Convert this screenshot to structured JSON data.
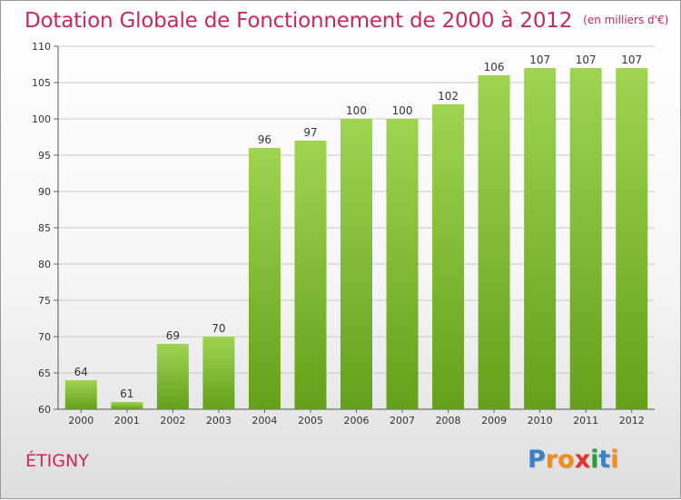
{
  "title": "Dotation Globale de Fonctionnement de 2000 à 2012",
  "unit_note": "(en milliers d'€)",
  "commune": "ÉTIGNY",
  "logo": {
    "letters": [
      "P",
      "r",
      "o",
      "x",
      "i",
      "t",
      "i"
    ],
    "colors": [
      "#3d7fc4",
      "#f28c1e",
      "#f28c1e",
      "#e8302c",
      "#2f9a3a",
      "#3d7fc4",
      "#f28c1e"
    ]
  },
  "colors": {
    "bar_light": "#9fd451",
    "bar_dark": "#64a019",
    "accent": "#c8285a",
    "grid": "#c8c8c8"
  },
  "chart_data": {
    "type": "bar",
    "categories": [
      "2000",
      "2001",
      "2002",
      "2003",
      "2004",
      "2005",
      "2006",
      "2007",
      "2008",
      "2009",
      "2010",
      "2011",
      "2012"
    ],
    "values": [
      64,
      61,
      69,
      70,
      96,
      97,
      100,
      100,
      102,
      106,
      107,
      107,
      107
    ],
    "title": "Dotation Globale de Fonctionnement de 2000 à 2012",
    "ylabel": "",
    "xlabel": "",
    "ylim": [
      60,
      110
    ],
    "yticks": [
      60,
      65,
      70,
      75,
      80,
      85,
      90,
      95,
      100,
      105,
      110
    ],
    "grid": true,
    "data_labels": true
  }
}
